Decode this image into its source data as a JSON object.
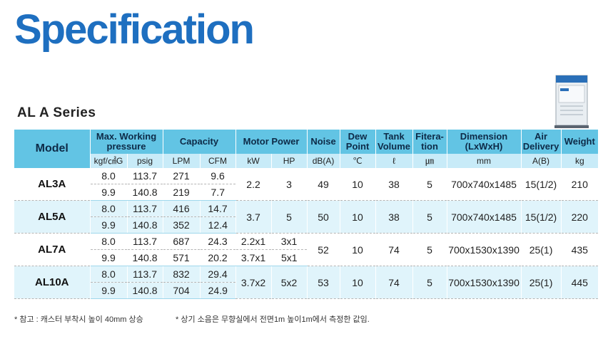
{
  "title": "Specification",
  "series": "AL A Series",
  "header": {
    "model": "Model",
    "max_pressure": "Max. Working pressure",
    "capacity": "Capacity",
    "motor": "Motor Power",
    "noise": "Noise",
    "dew": "Dew Point",
    "tank": "Tank Volume",
    "filtration": "Fitera- tion",
    "dimension": "Dimension (LxWxH)",
    "air": "Air Delivery",
    "weight": "Weight"
  },
  "units": [
    "kgf/㎠G",
    "psig",
    "LPM",
    "CFM",
    "kW",
    "HP",
    "dB(A)",
    "℃",
    "ℓ",
    "㎛",
    "mm",
    "A(B)",
    "kg"
  ],
  "rows": [
    {
      "model": "AL3A",
      "r1": {
        "kgf": "8.0",
        "psig": "113.7",
        "lpm": "271",
        "cfm": "9.6"
      },
      "r2": {
        "kgf": "9.9",
        "psig": "140.8",
        "lpm": "219",
        "cfm": "7.7"
      },
      "kw": "2.2",
      "hp": "3",
      "noise": "49",
      "dew": "10",
      "tank": "38",
      "filtration": "5",
      "dimension": "700x740x1485",
      "air": "15(1/2)",
      "weight": "210"
    },
    {
      "model": "AL5A",
      "r1": {
        "kgf": "8.0",
        "psig": "113.7",
        "lpm": "416",
        "cfm": "14.7"
      },
      "r2": {
        "kgf": "9.9",
        "psig": "140.8",
        "lpm": "352",
        "cfm": "12.4"
      },
      "kw": "3.7",
      "hp": "5",
      "noise": "50",
      "dew": "10",
      "tank": "38",
      "filtration": "5",
      "dimension": "700x740x1485",
      "air": "15(1/2)",
      "weight": "220"
    },
    {
      "model": "AL7A",
      "r1": {
        "kgf": "8.0",
        "psig": "113.7",
        "lpm": "687",
        "cfm": "24.3",
        "kw": "2.2x1",
        "hp": "3x1"
      },
      "r2": {
        "kgf": "9.9",
        "psig": "140.8",
        "lpm": "571",
        "cfm": "20.2",
        "kw": "3.7x1",
        "hp": "5x1"
      },
      "noise": "52",
      "dew": "10",
      "tank": "74",
      "filtration": "5",
      "dimension": "700x1530x1390",
      "air": "25(1)",
      "weight": "435"
    },
    {
      "model": "AL10A",
      "r1": {
        "kgf": "8.0",
        "psig": "113.7",
        "lpm": "832",
        "cfm": "29.4"
      },
      "r2": {
        "kgf": "9.9",
        "psig": "140.8",
        "lpm": "704",
        "cfm": "24.9"
      },
      "kw": "3.7x2",
      "hp": "5x2",
      "noise": "53",
      "dew": "10",
      "tank": "74",
      "filtration": "5",
      "dimension": "700x1530x1390",
      "air": "25(1)",
      "weight": "445"
    }
  ],
  "notes": {
    "note1": "* 참고 : 캐스터 부착시 높이 40mm 상승",
    "note2": "* 상기 소음은 무향실에서 전면1m  높이1m에서 측정한 값임."
  },
  "colors": {
    "title": "#1e6fc0",
    "header": "#62c4e4",
    "units": "#c8ebf8",
    "band": "#e0f4fb"
  },
  "image": {
    "machine": "air-compressor-product-photo"
  }
}
